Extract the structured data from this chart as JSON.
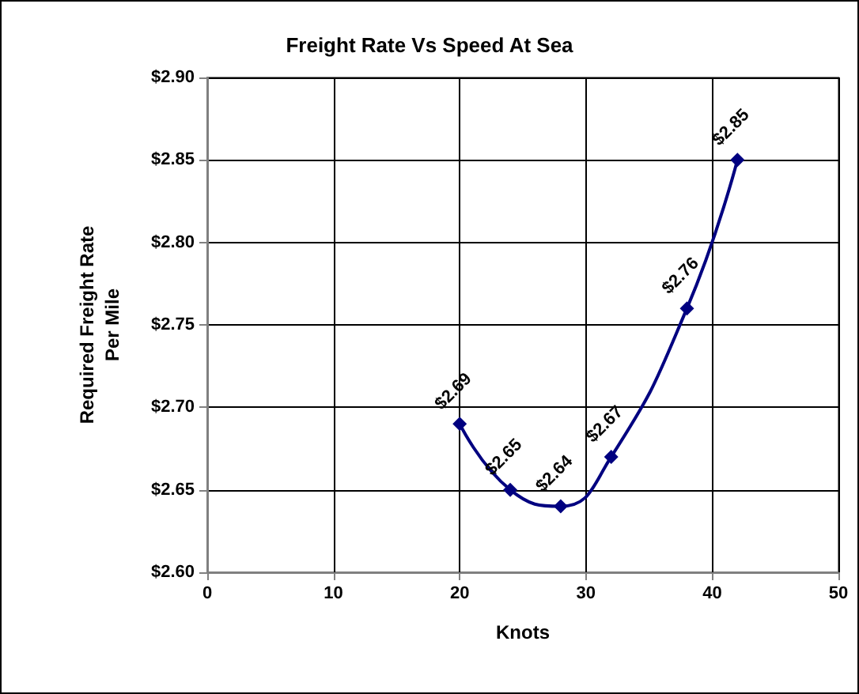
{
  "chart_data": {
    "type": "line",
    "title": "Freight Rate Vs Speed At Sea",
    "xlabel": "Knots",
    "ylabel": "Required Freight Rate\nPer Mile",
    "x": [
      20,
      24,
      28,
      32,
      38,
      42
    ],
    "series": [
      {
        "color": "#000080",
        "values": [
          2.69,
          2.65,
          2.64,
          2.67,
          2.76,
          2.85
        ],
        "value_labels": [
          "$2.69",
          "$2.65",
          "$2.64",
          "$2.67",
          "$2.76",
          "$2.85"
        ]
      }
    ],
    "xlim": [
      0,
      50
    ],
    "xticks": [
      0,
      10,
      20,
      30,
      40,
      50
    ],
    "ylim": [
      2.6,
      2.9
    ],
    "yticks": [
      {
        "value": 2.6,
        "label": "$2.60"
      },
      {
        "value": 2.65,
        "label": "$2.65"
      },
      {
        "value": 2.7,
        "label": "$2.70"
      },
      {
        "value": 2.75,
        "label": "$2.75"
      },
      {
        "value": 2.8,
        "label": "$2.80"
      },
      {
        "value": 2.85,
        "label": "$2.85"
      },
      {
        "value": 2.9,
        "label": "$2.90"
      }
    ],
    "grid": true,
    "marker": "diamond",
    "line_style": "solid"
  }
}
